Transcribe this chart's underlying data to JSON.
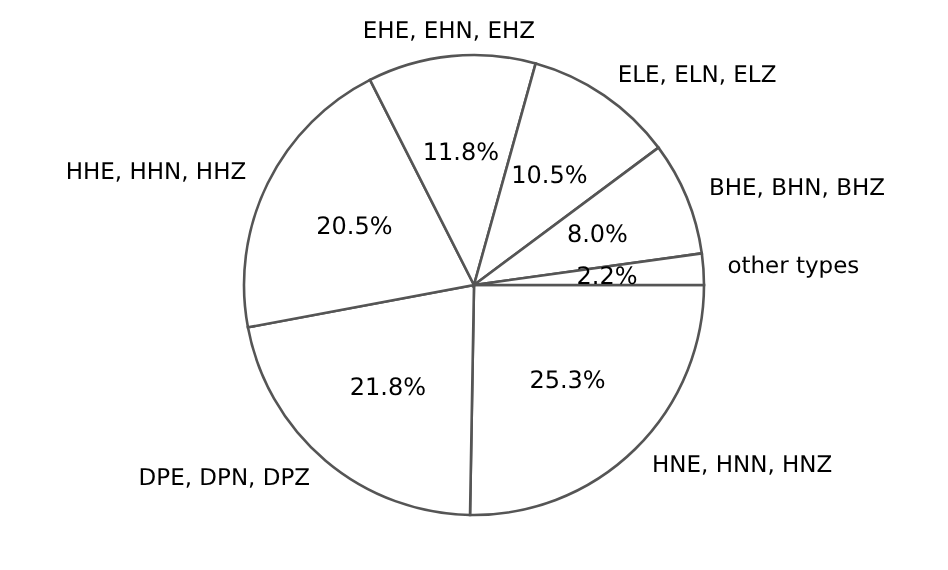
{
  "chart_data": {
    "type": "pie",
    "categories": [
      "HNE, HNN, HNZ",
      "DPE, DPN, DPZ",
      "HHE, HHN, HHZ",
      "EHE, EHN, EHZ",
      "ELE, ELN, ELZ",
      "BHE, BHN, BHZ",
      "other types"
    ],
    "values": [
      25.3,
      21.8,
      20.5,
      11.8,
      10.5,
      8.0,
      2.2
    ],
    "value_labels": [
      "25.3%",
      "21.8%",
      "20.5%",
      "11.8%",
      "10.5%",
      "8.0%",
      "2.2%"
    ],
    "colors": [
      "#ffffff",
      "#ffffff",
      "#ffffff",
      "#ffffff",
      "#ffffff",
      "#ffffff",
      "#ffffff"
    ]
  }
}
